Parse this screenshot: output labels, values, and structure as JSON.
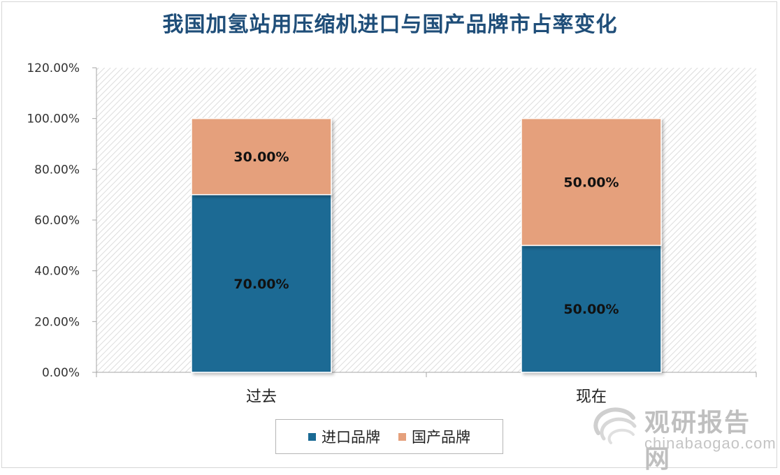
{
  "chart_data": {
    "type": "bar",
    "stacked": true,
    "title": "我国加氢站用压缩机进口与国产品牌市占率变化",
    "categories": [
      "过去",
      "现在"
    ],
    "series": [
      {
        "name": "进口品牌",
        "values": [
          70.0,
          50.0
        ],
        "labels": [
          "70.00%",
          "50.00%"
        ],
        "color": "#1a6a94"
      },
      {
        "name": "国产品牌",
        "values": [
          30.0,
          50.0
        ],
        "labels": [
          "30.00%",
          "50.00%"
        ],
        "color": "#e5a07c"
      }
    ],
    "ylim": [
      0,
      120
    ],
    "yticks": [
      "0.00%",
      "20.00%",
      "40.00%",
      "60.00%",
      "80.00%",
      "100.00%",
      "120.00%"
    ],
    "ytick_values": [
      0,
      20,
      40,
      60,
      80,
      100,
      120
    ],
    "legend_position": "bottom",
    "plot_background": "diagonal hatch"
  },
  "watermark": {
    "text_cn": "观研报告网",
    "text_en": "chinabaogao.com"
  }
}
